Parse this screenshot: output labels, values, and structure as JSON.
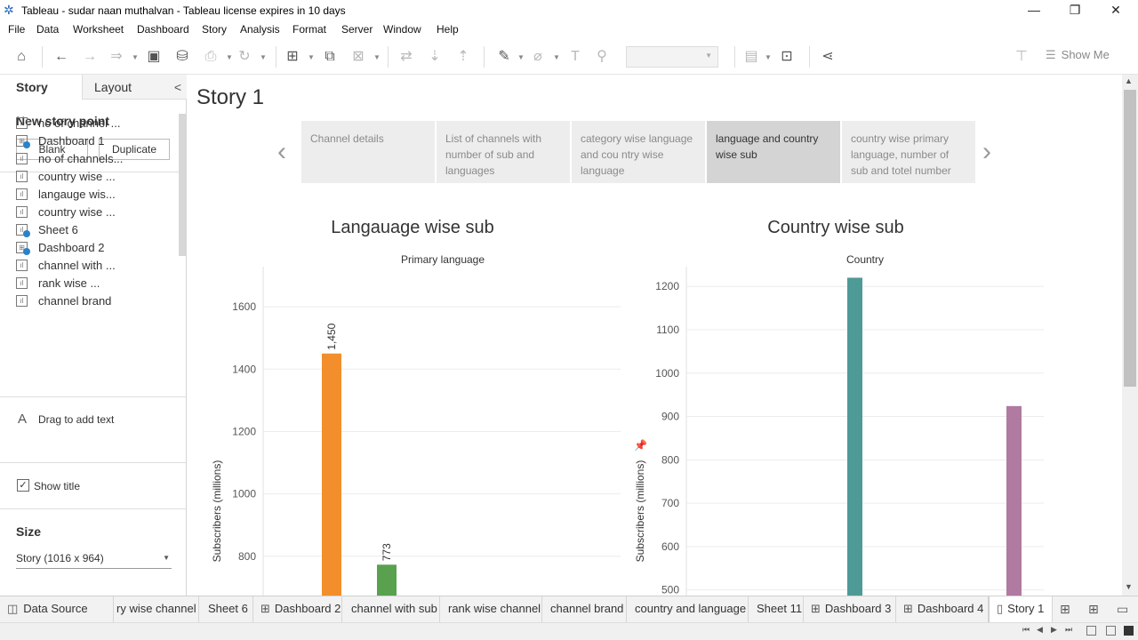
{
  "window": {
    "title": "Tableau - sudar naan muthalvan - Tableau license expires in 10 days",
    "minimize": "—",
    "restore": "❐",
    "close": "✕"
  },
  "menu": [
    "File",
    "Data",
    "Worksheet",
    "Dashboard",
    "Story",
    "Analysis",
    "Format",
    "Server",
    "Window",
    "Help"
  ],
  "toolbar": {
    "show_me": "Show Me"
  },
  "left_pane": {
    "tabs": {
      "story": "Story",
      "layout": "Layout",
      "collapse": "<"
    },
    "new_story_point": "New story point",
    "blank_button": "Blank",
    "duplicate_button": "Duplicate",
    "sheets": [
      {
        "label": "no of channel ...",
        "kind": "sheet",
        "check": false
      },
      {
        "label": "Dashboard 1",
        "kind": "dashboard",
        "check": true
      },
      {
        "label": "no of channels...",
        "kind": "sheet",
        "check": false
      },
      {
        "label": "country wise ...",
        "kind": "sheet",
        "check": false
      },
      {
        "label": "langauge wis...",
        "kind": "sheet",
        "check": false
      },
      {
        "label": "country wise ...",
        "kind": "sheet",
        "check": false
      },
      {
        "label": "Sheet 6",
        "kind": "sheet",
        "check": true
      },
      {
        "label": "Dashboard 2",
        "kind": "dashboard",
        "check": true
      },
      {
        "label": "channel with ...",
        "kind": "sheet",
        "check": false
      },
      {
        "label": "rank wise ...",
        "kind": "sheet",
        "check": false
      },
      {
        "label": "channel brand",
        "kind": "sheet",
        "check": false
      }
    ],
    "drag_text_icon": "A",
    "drag_text": "Drag to add text",
    "show_title": "Show title",
    "size_heading": "Size",
    "size_value": "Story (1016 x 964)"
  },
  "story": {
    "title": "Story 1",
    "points": [
      "Channel details",
      "List of channels with number of sub and languages",
      "category wise language and cou ntry wise language",
      "language and country wise sub",
      "country wise primary language, number of sub and totel number"
    ],
    "active_point": 3,
    "prev": "‹",
    "next": "›"
  },
  "chart_data": [
    {
      "type": "bar",
      "title": "Langauage wise sub",
      "column_header": "Primary language",
      "ylabel": "Subscribers (millions)",
      "ylim": [
        560,
        1700
      ],
      "yticks": [
        600,
        800,
        1000,
        1200,
        1400,
        1600
      ],
      "values": [
        1450,
        773
      ],
      "data_labels": [
        "1,450",
        "773"
      ],
      "colors": [
        "#f28e2b",
        "#59a14f"
      ]
    },
    {
      "type": "bar",
      "title": "Country wise sub",
      "column_header": "Country",
      "ylabel": "Subscribers (millions)",
      "ylim": [
        405,
        1225
      ],
      "yticks": [
        500,
        600,
        700,
        800,
        900,
        1000,
        1100,
        1200
      ],
      "values": [
        1220,
        924
      ],
      "colors": [
        "#4e9a97",
        "#b07aa1"
      ]
    }
  ],
  "bottom_tabs": [
    {
      "label": "Data Source",
      "icon": "◫"
    },
    {
      "label": "ry wise channel",
      "icon": ""
    },
    {
      "label": "Sheet 6",
      "icon": ""
    },
    {
      "label": "Dashboard 2",
      "icon": "⊞"
    },
    {
      "label": "channel with sub",
      "icon": ""
    },
    {
      "label": "rank wise channel",
      "icon": ""
    },
    {
      "label": "channel brand",
      "icon": ""
    },
    {
      "label": "country and language",
      "icon": ""
    },
    {
      "label": "Sheet 11",
      "icon": ""
    },
    {
      "label": "Dashboard 3",
      "icon": "⊞"
    },
    {
      "label": "Dashboard 4",
      "icon": "⊞"
    },
    {
      "label": "Story 1",
      "icon": "▯",
      "active": true
    }
  ]
}
